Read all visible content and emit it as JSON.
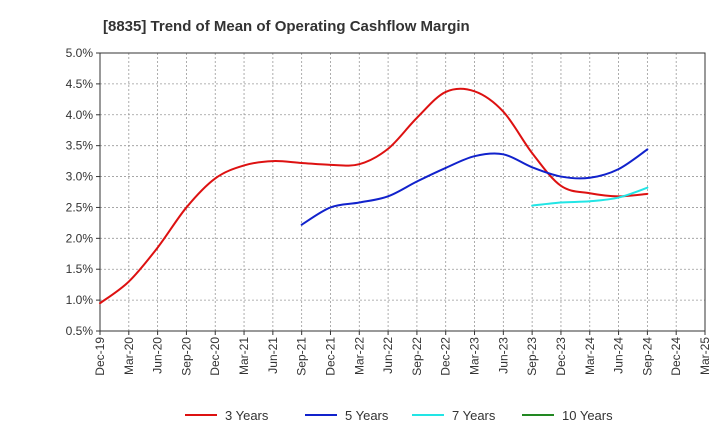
{
  "chart_data": {
    "type": "line",
    "title": "[8835]  Trend of Mean of Operating Cashflow Margin",
    "xlabel": "",
    "ylabel": "",
    "x_ticks": [
      "Dec-19",
      "Mar-20",
      "Jun-20",
      "Sep-20",
      "Dec-20",
      "Mar-21",
      "Jun-21",
      "Sep-21",
      "Dec-21",
      "Mar-22",
      "Jun-22",
      "Sep-22",
      "Dec-22",
      "Mar-23",
      "Jun-23",
      "Sep-23",
      "Dec-23",
      "Mar-24",
      "Jun-24",
      "Sep-24",
      "Dec-24",
      "Mar-25"
    ],
    "y_ticks": [
      "0.5%",
      "1.0%",
      "1.5%",
      "2.0%",
      "2.5%",
      "3.0%",
      "3.5%",
      "4.0%",
      "4.5%",
      "5.0%"
    ],
    "ylim": [
      0.5,
      5.0
    ],
    "grid": true,
    "legend_position": "bottom",
    "series": [
      {
        "name": "3 Years",
        "color": "#dd1111",
        "x": [
          "Dec-19",
          "Mar-20",
          "Jun-20",
          "Sep-20",
          "Dec-20",
          "Mar-21",
          "Jun-21",
          "Sep-21",
          "Dec-21",
          "Mar-22",
          "Jun-22",
          "Sep-22",
          "Dec-22",
          "Mar-23",
          "Jun-23",
          "Sep-23",
          "Dec-23",
          "Mar-24",
          "Jun-24",
          "Sep-24"
        ],
        "values": [
          0.95,
          1.3,
          1.85,
          2.5,
          2.97,
          3.18,
          3.25,
          3.22,
          3.19,
          3.2,
          3.45,
          3.95,
          4.37,
          4.38,
          4.05,
          3.38,
          2.85,
          2.73,
          2.68,
          2.72
        ]
      },
      {
        "name": "5 Years",
        "color": "#1122cc",
        "x": [
          "Sep-21",
          "Dec-21",
          "Mar-22",
          "Jun-22",
          "Sep-22",
          "Dec-22",
          "Mar-23",
          "Jun-23",
          "Sep-23",
          "Dec-23",
          "Mar-24",
          "Jun-24",
          "Sep-24"
        ],
        "values": [
          2.22,
          2.5,
          2.58,
          2.68,
          2.92,
          3.14,
          3.33,
          3.36,
          3.15,
          3.0,
          2.98,
          3.12,
          3.44
        ]
      },
      {
        "name": "7 Years",
        "color": "#22e5e5",
        "x": [
          "Sep-23",
          "Dec-23",
          "Mar-24",
          "Jun-24",
          "Sep-24"
        ],
        "values": [
          2.53,
          2.58,
          2.6,
          2.66,
          2.82
        ]
      },
      {
        "name": "10 Years",
        "color": "#228822",
        "x": [],
        "values": []
      }
    ]
  }
}
